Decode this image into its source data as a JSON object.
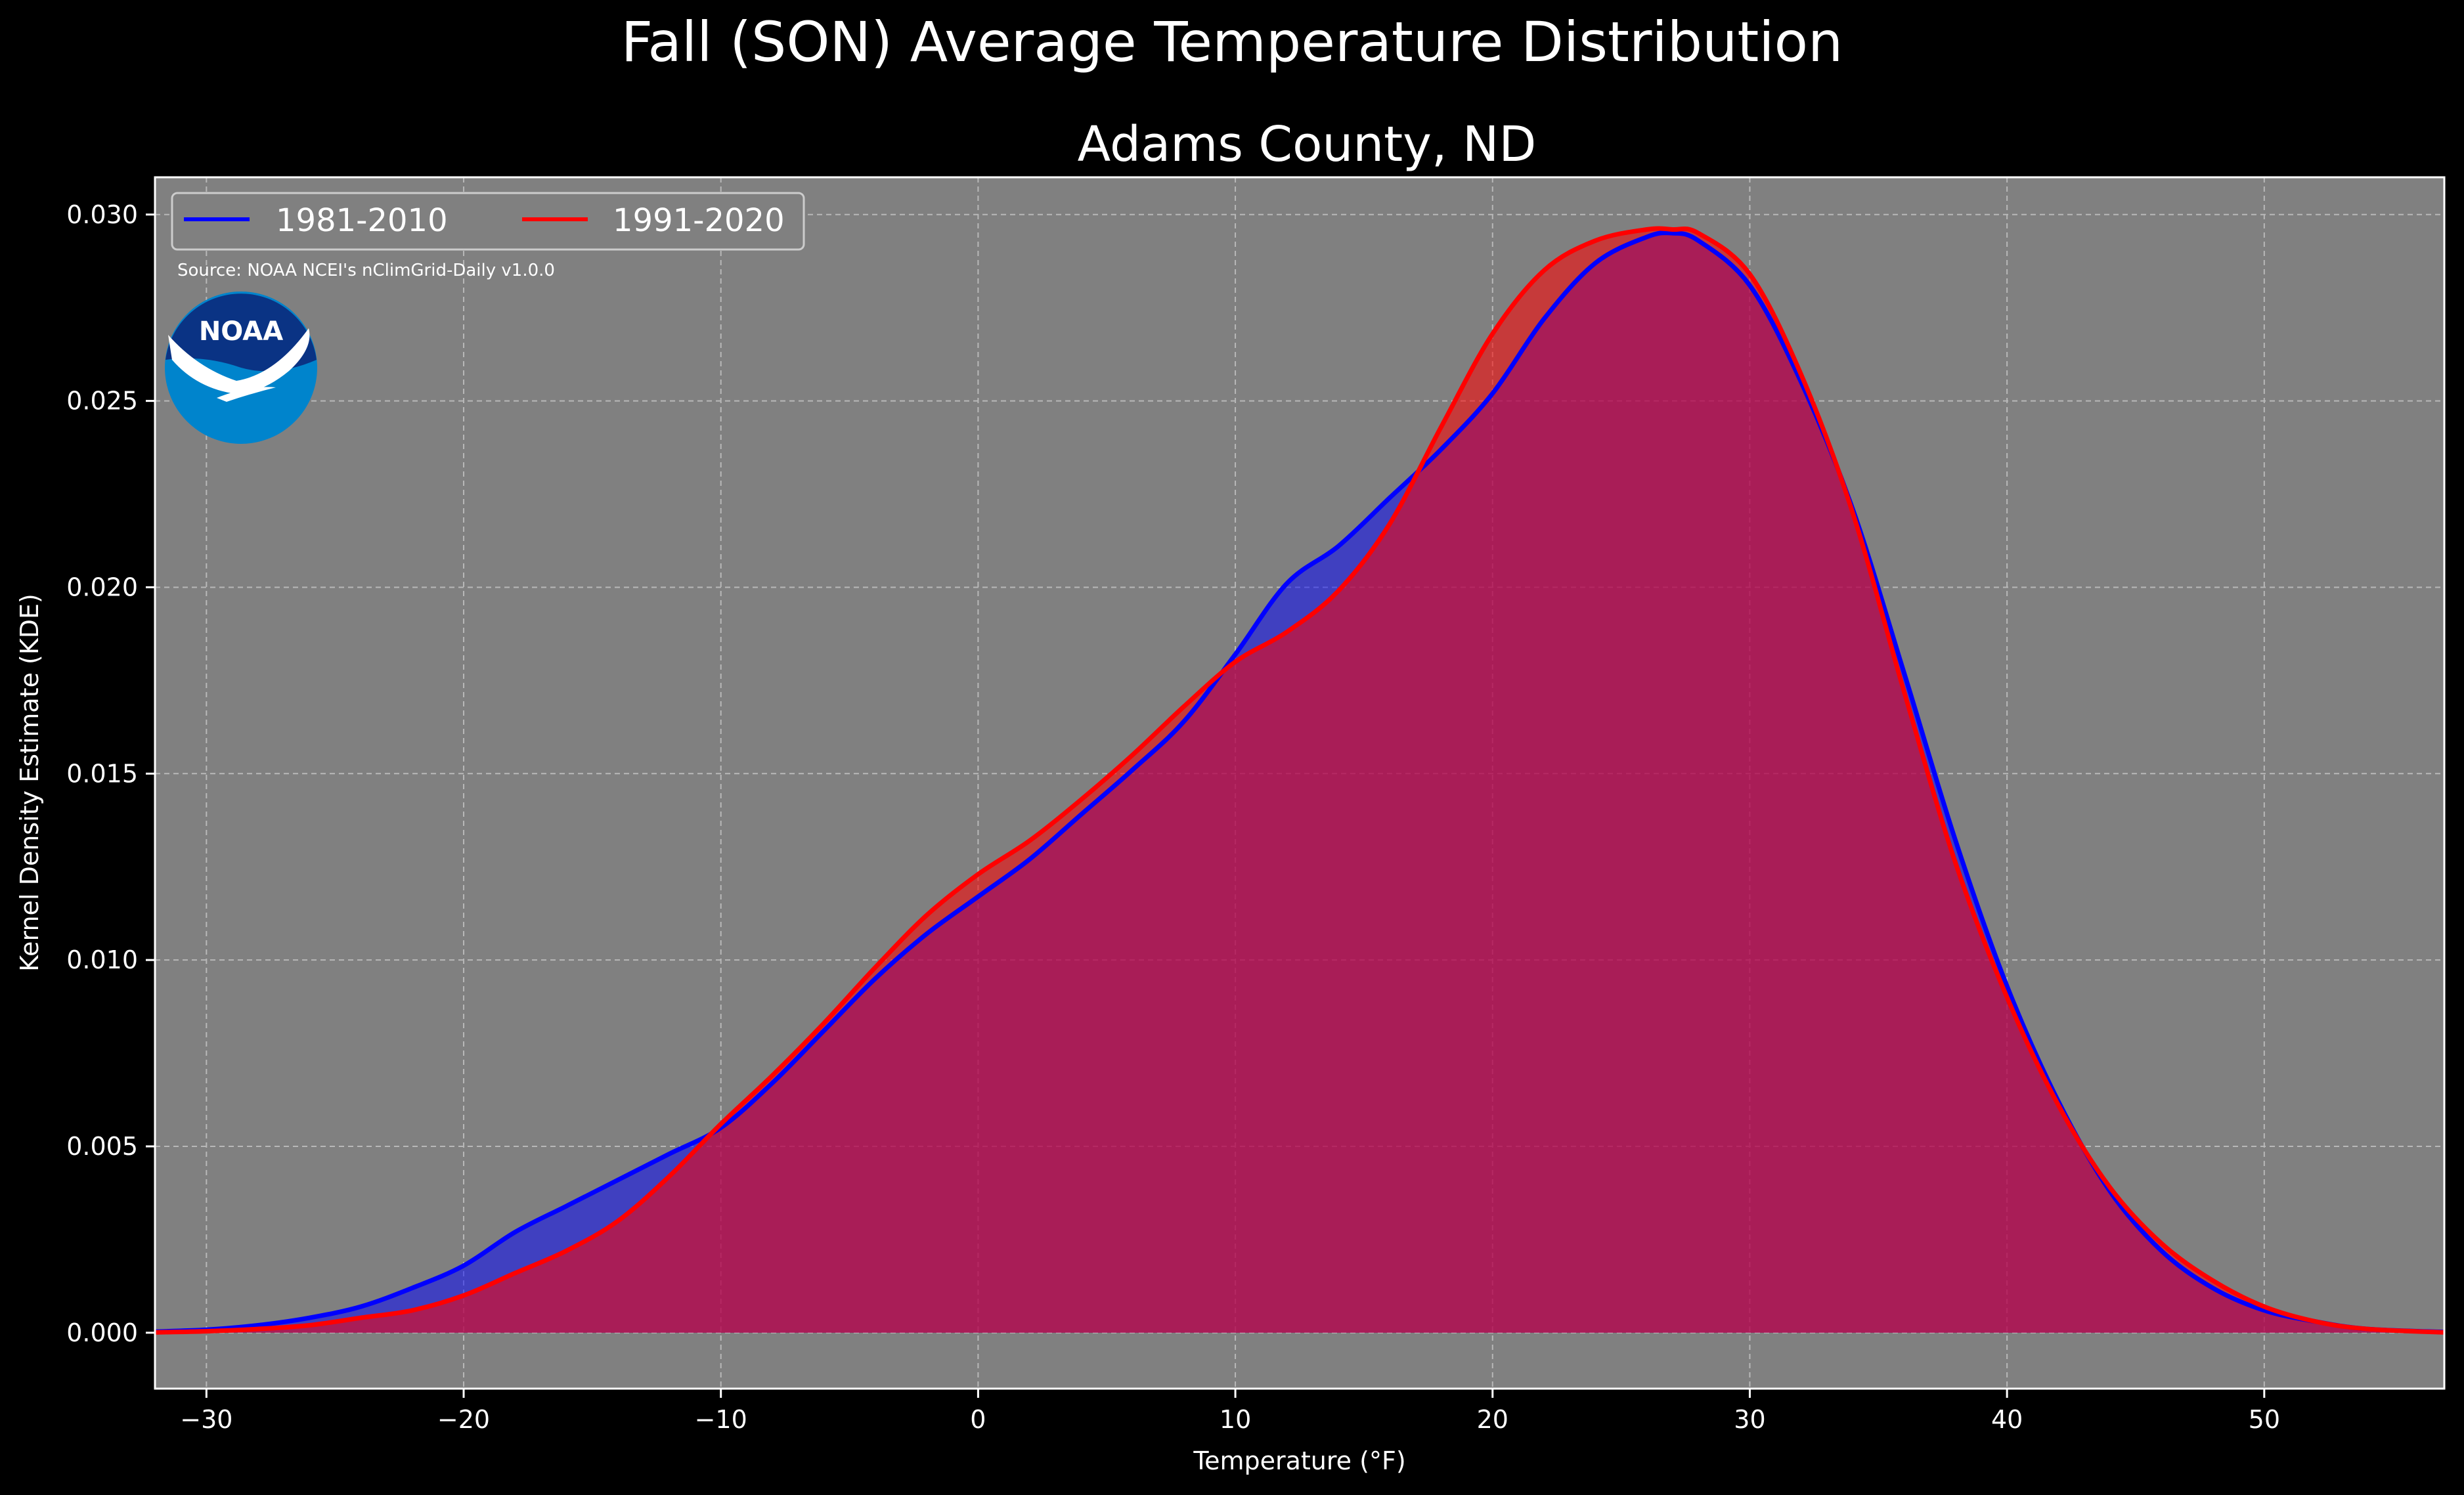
{
  "header": {
    "title": "Fall (SON) Average Temperature Distribution",
    "subtitle": "Adams County, ND"
  },
  "source_note": "Source: NOAA NCEI's nClimGrid-Daily v1.0.0",
  "logo": {
    "text": "NOAA",
    "icon": "noaa-logo"
  },
  "colors": {
    "background": "#000000",
    "plot_background": "#808080",
    "series_1981": "#0000ff",
    "series_1991": "#ff0000",
    "overlap_fill": "#9e1f5e",
    "grid": "#b8b8b8"
  },
  "chart_data": {
    "type": "area",
    "title": "Fall (SON) Average Temperature Distribution",
    "subtitle": "Adams County, ND",
    "xlabel": "Temperature (°F)",
    "ylabel": "Kernel Density Estimate (KDE)",
    "xlim": [
      -32,
      57
    ],
    "ylim": [
      -0.0015,
      0.031
    ],
    "xticks": [
      -30,
      -20,
      -10,
      0,
      10,
      20,
      30,
      40,
      50
    ],
    "xtick_labels": [
      "−30",
      "−20",
      "−10",
      "0",
      "10",
      "20",
      "30",
      "40",
      "50"
    ],
    "yticks": [
      0.0,
      0.005,
      0.01,
      0.015,
      0.02,
      0.025,
      0.03
    ],
    "ytick_labels": [
      "0.000",
      "0.005",
      "0.010",
      "0.015",
      "0.020",
      "0.025",
      "0.030"
    ],
    "grid": true,
    "legend_position": "top-left",
    "series": [
      {
        "name": "1981-2010",
        "color": "#0000ff",
        "x": [
          -32,
          -30,
          -28,
          -26,
          -24,
          -22,
          -20,
          -18,
          -16,
          -14,
          -12,
          -10,
          -8,
          -6,
          -4,
          -2,
          0,
          2,
          4,
          6,
          8,
          10,
          12,
          14,
          16,
          18,
          20,
          22,
          24,
          26,
          27,
          28,
          30,
          32,
          34,
          36,
          38,
          40,
          42,
          44,
          46,
          48,
          50,
          52,
          54,
          57
        ],
        "y": [
          3e-05,
          8e-05,
          0.0002,
          0.0004,
          0.0007,
          0.0012,
          0.0018,
          0.0027,
          0.0034,
          0.0041,
          0.0048,
          0.0055,
          0.0067,
          0.0081,
          0.0095,
          0.0107,
          0.0117,
          0.0127,
          0.0139,
          0.0151,
          0.0164,
          0.0182,
          0.0201,
          0.0211,
          0.0224,
          0.0237,
          0.0252,
          0.0272,
          0.0287,
          0.0294,
          0.0295,
          0.0293,
          0.0281,
          0.0255,
          0.0221,
          0.0177,
          0.0132,
          0.0093,
          0.0062,
          0.0038,
          0.0022,
          0.0012,
          0.0006,
          0.0003,
          0.0001,
          2e-05
        ]
      },
      {
        "name": "1991-2020",
        "color": "#ff0000",
        "x": [
          -32,
          -30,
          -28,
          -26,
          -24,
          -22,
          -20,
          -18,
          -16,
          -14,
          -12,
          -10,
          -8,
          -6,
          -4,
          -2,
          0,
          2,
          4,
          6,
          8,
          10,
          12,
          14,
          16,
          18,
          20,
          22,
          24,
          26,
          27,
          28,
          30,
          32,
          34,
          36,
          38,
          40,
          42,
          44,
          46,
          48,
          50,
          52,
          54,
          57
        ],
        "y": [
          1e-05,
          4e-05,
          0.0001,
          0.0002,
          0.0004,
          0.0006,
          0.001,
          0.0016,
          0.0022,
          0.003,
          0.0042,
          0.0056,
          0.0069,
          0.0083,
          0.0098,
          0.0112,
          0.0123,
          0.0132,
          0.0143,
          0.0155,
          0.0168,
          0.018,
          0.0188,
          0.0199,
          0.0217,
          0.0243,
          0.0268,
          0.0285,
          0.0293,
          0.0296,
          0.0296,
          0.0295,
          0.0284,
          0.0257,
          0.022,
          0.0172,
          0.0126,
          0.009,
          0.0061,
          0.0039,
          0.0024,
          0.0014,
          0.0007,
          0.0003,
          0.0001,
          1e-05
        ]
      }
    ]
  }
}
